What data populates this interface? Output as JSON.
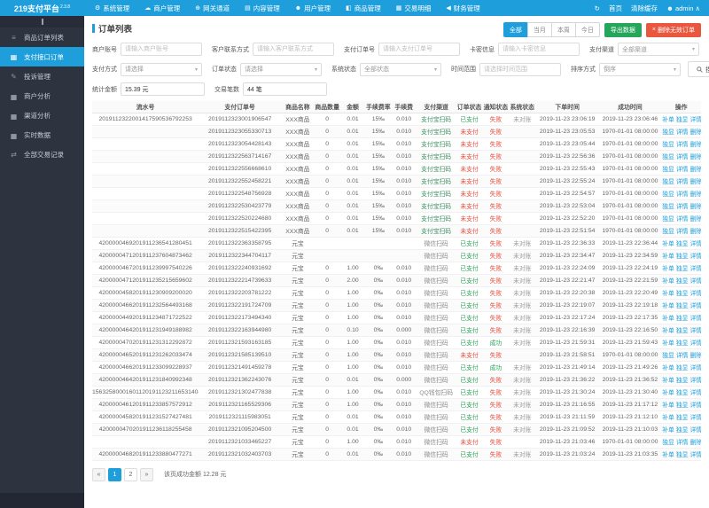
{
  "colors": {
    "accent": "#1e9fdb",
    "export_green": "#26a65b",
    "delete_red": "#e9573f",
    "status": {
      "已支付": "#2aa35a",
      "未支付": "#e74c3c",
      "失败": "#e74c3c",
      "成功": "#2aa35a",
      "未对账": "#9e9e9e"
    },
    "channel": {
      "支付宝扫码": "#3d8f62",
      "微信扫码": "#8a8a8a",
      "QQ钱包扫码": "#8a8a8a"
    }
  },
  "navbar": {
    "logo": "219支付平台",
    "version": "2.3.8",
    "menus": [
      {
        "icon": "gear-icon",
        "glyph": "⚙",
        "label": "系统管理"
      },
      {
        "icon": "cloud-icon",
        "glyph": "☁",
        "label": "商户管理"
      },
      {
        "icon": "globe-icon",
        "glyph": "⊕",
        "label": "网关通道"
      },
      {
        "icon": "doc-icon",
        "glyph": "▤",
        "label": "内容管理"
      },
      {
        "icon": "user-icon",
        "glyph": "☻",
        "label": "用户管理"
      },
      {
        "icon": "bag-icon",
        "glyph": "◧",
        "label": "商品管理"
      },
      {
        "icon": "chart-icon",
        "glyph": "▦",
        "label": "交易明细"
      },
      {
        "icon": "flag-icon",
        "glyph": "◀",
        "label": "财务管理"
      }
    ],
    "right": {
      "home": "首页",
      "clear_cache": "清除缓存",
      "user": "admin"
    }
  },
  "sidebar": {
    "items": [
      {
        "icon": "list-icon",
        "glyph": "≡",
        "label": "商品订单列表",
        "active": false
      },
      {
        "icon": "grid-icon",
        "glyph": "▦",
        "label": "支付接口订单",
        "active": true
      },
      {
        "icon": "pencil-icon",
        "glyph": "✎",
        "label": "投诉管理",
        "active": false
      },
      {
        "icon": "bar-chart-icon",
        "glyph": "▅",
        "label": "商户分析",
        "active": false
      },
      {
        "icon": "bar-chart-icon",
        "glyph": "▅",
        "label": "渠道分析",
        "active": false
      },
      {
        "icon": "bar-chart-icon",
        "glyph": "▅",
        "label": "实时数据",
        "active": false
      },
      {
        "icon": "exchange-icon",
        "glyph": "⇄",
        "label": "全部交易记录",
        "active": false
      }
    ]
  },
  "panel": {
    "title": "订单列表",
    "ranges": [
      "全部",
      "当月",
      "本周",
      "今日"
    ],
    "active_range": "全部",
    "export_label": "导出数据",
    "delete_label": "删除无效订单"
  },
  "filters": {
    "fields": [
      {
        "label": "商户账号",
        "type": "input",
        "placeholder": "请输入商户账号"
      },
      {
        "label": "客户联系方式",
        "type": "input",
        "placeholder": "请输入客户联系方式"
      },
      {
        "label": "支付订单号",
        "type": "input",
        "placeholder": "请输入支付订单号"
      },
      {
        "label": "卡密信息",
        "type": "input",
        "placeholder": "请输入卡密信息"
      },
      {
        "label": "支付渠道",
        "type": "select",
        "value": "全部渠道"
      },
      {
        "label": "支付方式",
        "type": "select",
        "value": "请选择"
      },
      {
        "label": "订单状态",
        "type": "select",
        "value": "请选择"
      },
      {
        "label": "系统状态",
        "type": "select",
        "value": "全部状态"
      },
      {
        "label": "时间范围",
        "type": "input",
        "placeholder": "请选择时间范围"
      },
      {
        "label": "排序方式",
        "type": "select",
        "value": "倒序"
      }
    ],
    "search_label": "搜 索",
    "stats": [
      {
        "label": "统计金额",
        "value": "15.39 元"
      },
      {
        "label": "交易笔数",
        "value": "44 笔"
      }
    ]
  },
  "table": {
    "headers": [
      "流水号",
      "支付订单号",
      "商品名称",
      "商品数量",
      "金额",
      "手续费率",
      "手续费",
      "支付渠道",
      "订单状态",
      "通知状态",
      "系统状态",
      "下单时间",
      "成功时间",
      "操作"
    ],
    "ops_sets": {
      "A": [
        "补单",
        "独显",
        "详情"
      ],
      "B": [
        "独显",
        "详情",
        "删除"
      ]
    },
    "rows": [
      [
        "2019112322001417590536792253",
        "2019112323001906547",
        "XXX商品",
        "0",
        "0.01",
        "15‰",
        "0.010",
        "支付宝扫码",
        "已支付",
        "失败",
        "未对账",
        "2019-11-23 23:06:19",
        "2019-11-23 23:06:46",
        "A"
      ],
      [
        "",
        "2019112323055330713",
        "XXX商品",
        "0",
        "0.01",
        "15‰",
        "0.010",
        "支付宝扫码",
        "未支付",
        "失败",
        "",
        "2019-11-23 23:05:53",
        "1970-01-01 08:00:00",
        "B"
      ],
      [
        "",
        "2019112323054428143",
        "XXX商品",
        "0",
        "0.01",
        "15‰",
        "0.010",
        "支付宝扫码",
        "未支付",
        "失败",
        "",
        "2019-11-23 23:05:44",
        "1970-01-01 08:00:00",
        "B"
      ],
      [
        "",
        "2019112322563714167",
        "XXX商品",
        "0",
        "0.01",
        "15‰",
        "0.010",
        "支付宝扫码",
        "未支付",
        "失败",
        "",
        "2019-11-23 22:56:36",
        "1970-01-01 08:00:00",
        "B"
      ],
      [
        "",
        "2019112322556668610",
        "XXX商品",
        "0",
        "0.01",
        "15‰",
        "0.010",
        "支付宝扫码",
        "未支付",
        "失败",
        "",
        "2019-11-23 22:55:43",
        "1970-01-01 08:00:00",
        "B"
      ],
      [
        "",
        "2019112322552458221",
        "XXX商品",
        "0",
        "0.01",
        "15‰",
        "0.010",
        "支付宝扫码",
        "未支付",
        "失败",
        "",
        "2019-11-23 22:55:24",
        "1970-01-01 08:00:00",
        "B"
      ],
      [
        "",
        "2019112322548756928",
        "XXX商品",
        "0",
        "0.01",
        "15‰",
        "0.010",
        "支付宝扫码",
        "未支付",
        "失败",
        "",
        "2019-11-23 22:54:57",
        "1970-01-01 08:00:00",
        "B"
      ],
      [
        "",
        "2019112322530423779",
        "XXX商品",
        "0",
        "0.01",
        "15‰",
        "0.010",
        "支付宝扫码",
        "未支付",
        "失败",
        "",
        "2019-11-23 22:53:04",
        "1970-01-01 08:00:00",
        "B"
      ],
      [
        "",
        "2019112322520224680",
        "XXX商品",
        "0",
        "0.01",
        "15‰",
        "0.010",
        "支付宝扫码",
        "未支付",
        "失败",
        "",
        "2019-11-23 22:52:20",
        "1970-01-01 08:00:00",
        "B"
      ],
      [
        "",
        "2019112322515422395",
        "XXX商品",
        "0",
        "0.01",
        "15‰",
        "0.010",
        "支付宝扫码",
        "未支付",
        "失败",
        "",
        "2019-11-23 22:51:54",
        "1970-01-01 08:00:00",
        "B"
      ],
      [
        "4200000469201911236541280451",
        "2019112322363358795",
        "元宝",
        "",
        "",
        "",
        "",
        "微信扫码",
        "已支付",
        "失败",
        "未对账",
        "2019-11-23 22:36:33",
        "2019-11-23 22:36:44",
        "A"
      ],
      [
        "4200000471201911237604873462",
        "2019112322344704117",
        "元宝",
        "",
        "",
        "",
        "",
        "微信扫码",
        "已支付",
        "失败",
        "未对账",
        "2019-11-23 22:34:47",
        "2019-11-23 22:34:59",
        "A"
      ],
      [
        "4200000467201911239997540226",
        "2019112322240931692",
        "元宝",
        "0",
        "1.00",
        "0‰",
        "0.010",
        "微信扫码",
        "已支付",
        "失败",
        "未对账",
        "2019-11-23 22:24:09",
        "2019-11-23 22:24:19",
        "A"
      ],
      [
        "4200000471201911235215659602",
        "2019112322214739633",
        "元宝",
        "0",
        "2.00",
        "0‰",
        "0.010",
        "微信扫码",
        "已支付",
        "失败",
        "未对账",
        "2019-11-23 22:21:47",
        "2019-11-23 22:21:59",
        "A"
      ],
      [
        "4200000458201911230909200020",
        "2019112322203781222",
        "元宝",
        "0",
        "1.00",
        "0‰",
        "0.010",
        "微信扫码",
        "已支付",
        "失败",
        "未对账",
        "2019-11-23 22:20:38",
        "2019-11-23 22:20:49",
        "A"
      ],
      [
        "4200000466201911232564493168",
        "2019112322191724709",
        "元宝",
        "0",
        "1.00",
        "0‰",
        "0.010",
        "微信扫码",
        "已支付",
        "失败",
        "未对账",
        "2019-11-23 22:19:07",
        "2019-11-23 22:19:18",
        "A"
      ],
      [
        "4200000449201911234871722522",
        "2019112322173494340",
        "元宝",
        "0",
        "1.00",
        "0‰",
        "0.010",
        "微信扫码",
        "已支付",
        "失败",
        "未对账",
        "2019-11-23 22:17:24",
        "2019-11-23 22:17:35",
        "A"
      ],
      [
        "4200000464201911231949188982",
        "2019112322163944980",
        "元宝",
        "0",
        "0.10",
        "0‰",
        "0.000",
        "微信扫码",
        "已支付",
        "失败",
        "未对账",
        "2019-11-23 22:16:39",
        "2019-11-23 22:16:50",
        "A"
      ],
      [
        "4200000470201911231312292872",
        "2019112321593163185",
        "元宝",
        "0",
        "1.00",
        "0‰",
        "0.010",
        "微信扫码",
        "已支付",
        "成功",
        "未对账",
        "2019-11-23 21:59:31",
        "2019-11-23 21:59:43",
        "A"
      ],
      [
        "4200000465201911231262033474",
        "2019112321585139510",
        "元宝",
        "0",
        "1.00",
        "0‰",
        "0.010",
        "微信扫码",
        "未支付",
        "失败",
        "",
        "2019-11-23 21:58:51",
        "1970-01-01 08:00:00",
        "B"
      ],
      [
        "4200000466201911233099228937",
        "2019112321491459278",
        "元宝",
        "0",
        "1.00",
        "0‰",
        "0.010",
        "微信扫码",
        "已支付",
        "成功",
        "未对账",
        "2019-11-23 21:49:14",
        "2019-11-23 21:49:26",
        "A"
      ],
      [
        "4200000464201911231840992348",
        "2019112321362243076",
        "元宝",
        "0",
        "0.01",
        "0‰",
        "0.000",
        "微信扫码",
        "已支付",
        "失败",
        "未对账",
        "2019-11-23 21:36:22",
        "2019-11-23 21:36:52",
        "A"
      ],
      [
        "1563258000160112019112321165314045",
        "2019112321302477838",
        "元宝",
        "0",
        "1.00",
        "0‰",
        "0.010",
        "QQ钱包扫码",
        "已支付",
        "失败",
        "未对账",
        "2019-11-23 21:30:24",
        "2019-11-23 21:30:40",
        "A"
      ],
      [
        "4200000461201911233857572912",
        "2019112321165529306",
        "元宝",
        "0",
        "1.00",
        "0‰",
        "0.010",
        "微信扫码",
        "已支付",
        "失败",
        "未对账",
        "2019-11-23 21:16:55",
        "2019-11-23 21:17:12",
        "A"
      ],
      [
        "4200000458201911231527427481",
        "2019112321115983051",
        "元宝",
        "0",
        "0.01",
        "0‰",
        "0.010",
        "微信扫码",
        "已支付",
        "失败",
        "未对账",
        "2019-11-23 21:11:59",
        "2019-11-23 21:12:10",
        "A"
      ],
      [
        "4200000470201911236118255458",
        "2019112321095204500",
        "元宝",
        "0",
        "0.01",
        "0‰",
        "0.010",
        "微信扫码",
        "已支付",
        "失败",
        "未对账",
        "2019-11-23 21:09:52",
        "2019-11-23 21:10:03",
        "A"
      ],
      [
        "",
        "2019112321033465227",
        "元宝",
        "0",
        "1.00",
        "0‰",
        "0.010",
        "微信扫码",
        "未支付",
        "失败",
        "",
        "2019-11-23 21:03:46",
        "1970-01-01 08:00:00",
        "B"
      ],
      [
        "4200000468201911233880477271",
        "2019112321032403703",
        "元宝",
        "0",
        "0.01",
        "0‰",
        "0.010",
        "微信扫码",
        "已支付",
        "失败",
        "未对账",
        "2019-11-23 21:03:24",
        "2019-11-23 21:03:35",
        "A"
      ]
    ]
  },
  "pagination": {
    "prev": "«",
    "pages": [
      "1",
      "2"
    ],
    "active_page": "1",
    "next": "»",
    "summary": "该页成功金额 12.28 元"
  }
}
